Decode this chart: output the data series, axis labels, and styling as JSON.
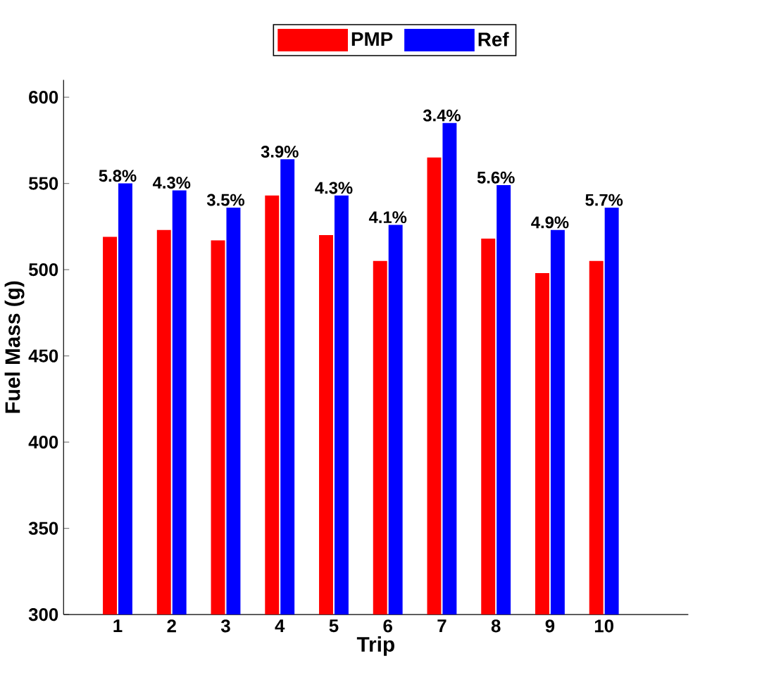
{
  "chart_data": {
    "type": "bar",
    "xlabel": "Trip",
    "ylabel": "Fuel Mass (g)",
    "categories": [
      "1",
      "2",
      "3",
      "4",
      "5",
      "6",
      "7",
      "8",
      "9",
      "10"
    ],
    "series": [
      {
        "name": "PMP",
        "color": "#ff0000",
        "values": [
          519,
          523,
          517,
          543,
          520,
          505,
          565,
          518,
          498,
          505
        ]
      },
      {
        "name": "Ref",
        "color": "#0000ff",
        "values": [
          550,
          546,
          536,
          564,
          543,
          526,
          585,
          549,
          523,
          536
        ]
      }
    ],
    "ylim": [
      300,
      610
    ],
    "yticks": [
      300,
      350,
      400,
      450,
      500,
      550,
      600
    ],
    "legend": "top",
    "annotations": [
      {
        "text": "5.8%",
        "x": "1",
        "y": 550
      },
      {
        "text": "4.3%",
        "x": "2",
        "y": 546
      },
      {
        "text": "3.5%",
        "x": "3",
        "y": 536
      },
      {
        "text": "3.9%",
        "x": "4",
        "y": 564
      },
      {
        "text": "4.3%",
        "x": "5",
        "y": 543
      },
      {
        "text": "4.1%",
        "x": "6",
        "y": 526
      },
      {
        "text": "3.4%",
        "x": "7",
        "y": 585
      },
      {
        "text": "5.6%",
        "x": "8",
        "y": 549
      },
      {
        "text": "4.9%",
        "x": "9",
        "y": 523
      },
      {
        "text": "5.7%",
        "x": "10",
        "y": 536
      }
    ]
  }
}
